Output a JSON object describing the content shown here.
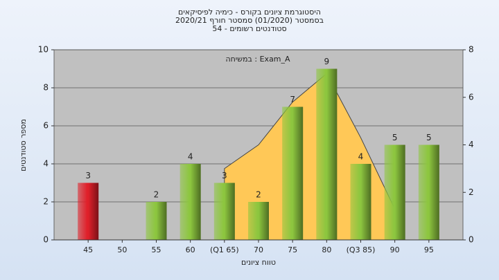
{
  "chart_data": {
    "type": "bar",
    "title": [
      "היסטוגרמת ציונים בקורס - כימיה לפיסיקאים",
      "בסמסטר (01/2020) סמסטר חורף 2020/21",
      "סטודנטים רשומים - 54"
    ],
    "annotation": "במשיחה : Exam_A",
    "xlabel": "טווח ציונים",
    "ylabel": "מספר סטודנטים",
    "categories": [
      "45",
      "50",
      "55",
      "60",
      "(Q1 65)",
      "70",
      "75",
      "80",
      "(Q3 85)",
      "90",
      "95"
    ],
    "values": [
      3,
      null,
      2,
      4,
      3,
      2,
      7,
      9,
      4,
      5,
      5
    ],
    "colors": [
      "#e0202a",
      null,
      "#8dc63f",
      "#8dc63f",
      "#8dc63f",
      "#8dc63f",
      "#8dc63f",
      "#8dc63f",
      "#8dc63f",
      "#8dc63f",
      "#8dc63f"
    ],
    "area": {
      "color": "#ffc857",
      "axis": "y2",
      "values": [
        null,
        null,
        null,
        null,
        3,
        4,
        5.8,
        7,
        4.3,
        1.3,
        null
      ]
    },
    "ylim": [
      0,
      10
    ],
    "yticks": [
      0,
      2,
      4,
      6,
      8,
      10
    ],
    "y2lim": [
      0,
      8
    ],
    "y2ticks": [
      0,
      2,
      4,
      6,
      8
    ],
    "grid": true
  }
}
